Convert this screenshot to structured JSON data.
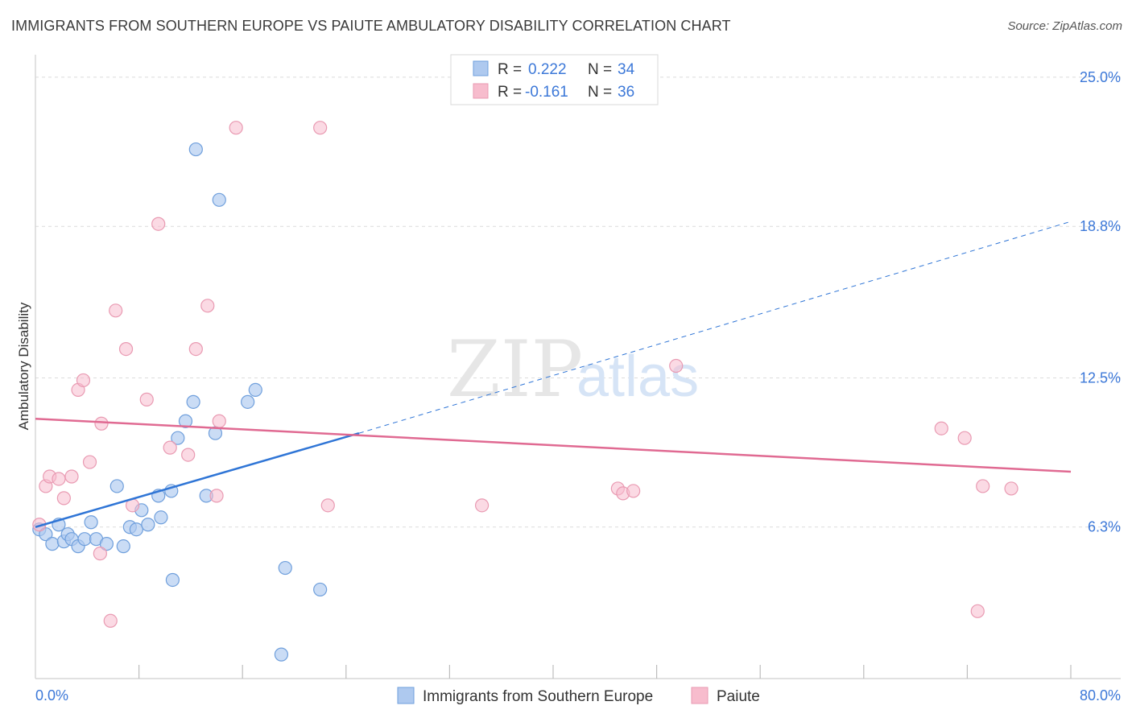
{
  "title": "IMMIGRANTS FROM SOUTHERN EUROPE VS PAIUTE AMBULATORY DISABILITY CORRELATION CHART",
  "source": "Source: ZipAtlas.com",
  "watermark": {
    "zip": "ZIP",
    "atlas": "atlas"
  },
  "colors": {
    "blue_fill": "#aec9ef",
    "blue_stroke": "#6f9fdc",
    "blue_line": "#2f75d6",
    "pink_fill": "#f7bccd",
    "pink_stroke": "#e99ab2",
    "pink_line": "#e06a92",
    "tick_text": "#3c78d8",
    "grid": "#dcdcdc"
  },
  "legend": {
    "r_label": "R =",
    "n_label": "N =",
    "series": [
      {
        "r": "0.222",
        "n": "34"
      },
      {
        "r": "-0.161",
        "n": "36"
      }
    ]
  },
  "chart_data": {
    "type": "scatter",
    "title": "IMMIGRANTS FROM SOUTHERN EUROPE VS PAIUTE AMBULATORY DISABILITY CORRELATION CHART",
    "xlabel": "",
    "ylabel": "Ambulatory Disability",
    "xlim": [
      0,
      80
    ],
    "ylim": [
      0,
      25.6
    ],
    "x_tick_labels": [
      "0.0%",
      "80.0%"
    ],
    "y_ticks": [
      6.3,
      12.5,
      18.8,
      25.0
    ],
    "y_tick_labels": [
      "6.3%",
      "12.5%",
      "18.8%",
      "25.0%"
    ],
    "grid": true,
    "legend_position": "top-center",
    "series": [
      {
        "name": "Immigrants from Southern Europe",
        "color": "blue",
        "points": [
          [
            0.3,
            6.2
          ],
          [
            0.8,
            6.0
          ],
          [
            1.3,
            5.6
          ],
          [
            1.8,
            6.4
          ],
          [
            2.2,
            5.7
          ],
          [
            2.5,
            6.0
          ],
          [
            2.8,
            5.8
          ],
          [
            3.3,
            5.5
          ],
          [
            3.8,
            5.8
          ],
          [
            4.3,
            6.5
          ],
          [
            4.7,
            5.8
          ],
          [
            5.5,
            5.6
          ],
          [
            6.3,
            8.0
          ],
          [
            6.8,
            5.5
          ],
          [
            7.3,
            6.3
          ],
          [
            7.8,
            6.2
          ],
          [
            8.2,
            7.0
          ],
          [
            8.7,
            6.4
          ],
          [
            9.5,
            7.6
          ],
          [
            9.7,
            6.7
          ],
          [
            10.5,
            7.8
          ],
          [
            11.0,
            10.0
          ],
          [
            11.6,
            10.7
          ],
          [
            12.2,
            11.5
          ],
          [
            13.2,
            7.6
          ],
          [
            13.9,
            10.2
          ],
          [
            10.6,
            4.1
          ],
          [
            12.4,
            22.0
          ],
          [
            14.2,
            19.9
          ],
          [
            16.4,
            11.5
          ],
          [
            17.0,
            12.0
          ],
          [
            19.3,
            4.6
          ],
          [
            22.0,
            3.7
          ],
          [
            19.0,
            1.0
          ]
        ]
      },
      {
        "name": "Paiute",
        "color": "pink",
        "points": [
          [
            0.3,
            6.4
          ],
          [
            0.8,
            8.0
          ],
          [
            1.1,
            8.4
          ],
          [
            1.8,
            8.3
          ],
          [
            2.2,
            7.5
          ],
          [
            2.8,
            8.4
          ],
          [
            3.3,
            12.0
          ],
          [
            3.7,
            12.4
          ],
          [
            4.2,
            9.0
          ],
          [
            5.0,
            5.2
          ],
          [
            5.1,
            10.6
          ],
          [
            5.8,
            2.4
          ],
          [
            6.2,
            15.3
          ],
          [
            7.0,
            13.7
          ],
          [
            7.5,
            7.2
          ],
          [
            8.6,
            11.6
          ],
          [
            9.5,
            18.9
          ],
          [
            10.4,
            9.6
          ],
          [
            11.8,
            9.3
          ],
          [
            12.4,
            13.7
          ],
          [
            13.3,
            15.5
          ],
          [
            14.0,
            7.6
          ],
          [
            14.2,
            10.7
          ],
          [
            15.5,
            22.9
          ],
          [
            22.0,
            22.9
          ],
          [
            22.6,
            7.2
          ],
          [
            34.5,
            7.2
          ],
          [
            45.0,
            7.9
          ],
          [
            45.4,
            7.7
          ],
          [
            46.2,
            7.8
          ],
          [
            49.5,
            13.0
          ],
          [
            70.0,
            10.4
          ],
          [
            71.8,
            10.0
          ],
          [
            72.8,
            2.8
          ],
          [
            73.2,
            8.0
          ],
          [
            75.4,
            7.9
          ]
        ]
      }
    ],
    "trend_lines": [
      {
        "series": "Immigrants from Southern Europe",
        "x0": 0,
        "y0": 6.3,
        "x1": 25,
        "y1": 10.2,
        "dashed_x1": 80,
        "dashed_y1": 19.0
      },
      {
        "series": "Paiute",
        "x0": 0,
        "y0": 10.8,
        "x1": 80,
        "y1": 8.6
      }
    ]
  }
}
